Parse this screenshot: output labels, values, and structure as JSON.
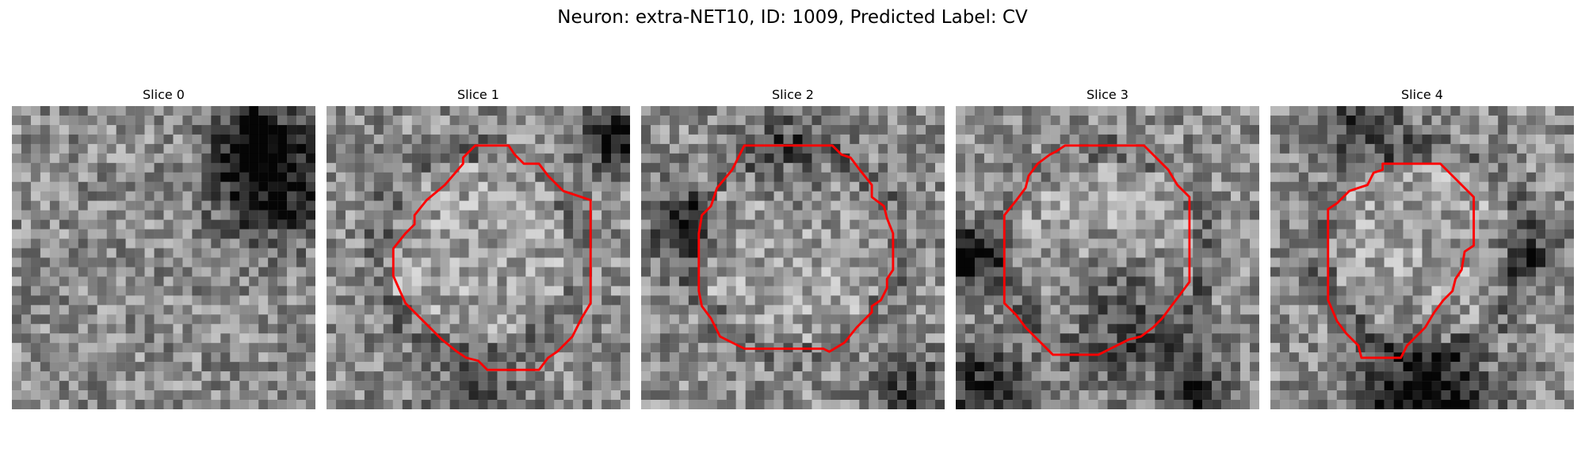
{
  "figure": {
    "title": "Neuron: extra-NET10, ID: 1009, Predicted Label: CV",
    "contour_color": "#ff0000"
  },
  "panels": [
    {
      "title": "Slice 0",
      "has_contour": false
    },
    {
      "title": "Slice 1",
      "has_contour": true
    },
    {
      "title": "Slice 2",
      "has_contour": true
    },
    {
      "title": "Slice 3",
      "has_contour": true
    },
    {
      "title": "Slice 4",
      "has_contour": true
    }
  ]
}
